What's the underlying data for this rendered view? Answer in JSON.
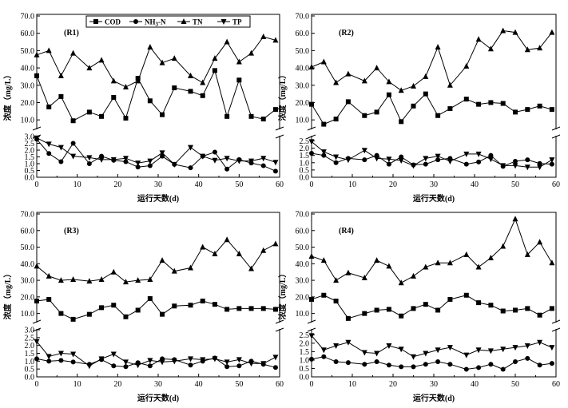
{
  "chart_data": {
    "type": "line",
    "legend": {
      "placement": "top-left of first panel",
      "entries": [
        {
          "key": "COD",
          "label": "COD",
          "marker": "square"
        },
        {
          "key": "NH3N",
          "label_main": "NH",
          "label_sub": "3",
          "label_tail": "-N",
          "marker": "circle"
        },
        {
          "key": "TN",
          "label": "TN",
          "marker": "triangle-up"
        },
        {
          "key": "TP",
          "label": "TP",
          "marker": "triangle-down"
        }
      ]
    },
    "x_axis": {
      "label": "运行天数(d)",
      "range": [
        0,
        60
      ],
      "ticks": [
        0,
        10,
        20,
        30,
        40,
        50,
        60
      ]
    },
    "y_axis": {
      "label": "浓度（mg/L）",
      "broken": true,
      "upper_range": [
        5,
        70
      ],
      "upper_ticks": [
        "10.0",
        "20.0",
        "30.0",
        "40.0",
        "50.0",
        "60.0",
        "70.0"
      ],
      "lower_range": [
        0,
        3
      ],
      "lower_ticks_left": [
        "0.0",
        "0.5",
        "1.0",
        "1.5",
        "2.0",
        "2.5",
        "3.0"
      ],
      "lower_ticks_right": [
        "0.0",
        "0.5",
        "1.0",
        "1.5",
        "2.0",
        "2.5"
      ]
    },
    "x": [
      0,
      3,
      6,
      9,
      13,
      16,
      19,
      22,
      25,
      28,
      31,
      34,
      38,
      41,
      44,
      47,
      50,
      53,
      56,
      59
    ],
    "panels": [
      {
        "tag": "(R1)",
        "lower_max": 3,
        "series": {
          "COD": [
            35.5,
            17.5,
            23.5,
            9.5,
            14.5,
            12,
            23,
            11,
            34,
            21,
            13,
            28.5,
            26.5,
            24,
            38.5,
            12,
            33,
            12,
            10.5,
            16
          ],
          "NH3N": [
            2.8,
            1.75,
            1.15,
            2.5,
            1.0,
            1.55,
            1.25,
            1.15,
            0.75,
            0.85,
            1.55,
            0.95,
            0.7,
            1.55,
            1.85,
            0.6,
            1.3,
            1.05,
            0.85,
            0.45
          ],
          "TN": [
            47.5,
            50,
            35.5,
            48.5,
            40,
            44.5,
            32.5,
            29,
            32.5,
            52,
            43,
            45.5,
            35.5,
            31.5,
            45.5,
            55,
            43.5,
            48.5,
            58,
            56
          ],
          "TP": [
            2.9,
            2.45,
            2.2,
            1.55,
            1.45,
            1.3,
            1.3,
            1.4,
            1.05,
            1.2,
            1.8,
            0.95,
            2.2,
            1.55,
            1.25,
            1.4,
            1.2,
            1.2,
            1.4,
            1.1
          ]
        }
      },
      {
        "tag": "(R2)",
        "lower_max": 2.8,
        "series": {
          "COD": [
            19,
            7.5,
            10.5,
            20.5,
            12.5,
            14.5,
            24.5,
            9,
            18,
            25,
            12.5,
            16.5,
            22,
            19,
            20,
            19.5,
            14.5,
            16,
            18,
            16
          ],
          "NH3N": [
            1.65,
            1.5,
            1.0,
            1.3,
            1.2,
            1.5,
            0.9,
            1.4,
            0.85,
            0.9,
            1.2,
            1.3,
            0.9,
            1.05,
            1.5,
            0.75,
            1.1,
            1.2,
            0.95,
            0.9
          ],
          "TN": [
            40.5,
            43.5,
            31.5,
            36.5,
            32.5,
            40,
            32,
            27,
            29.5,
            35,
            52,
            30,
            41,
            56.5,
            51,
            61.5,
            60.5,
            50.5,
            51.5,
            60.5
          ],
          "TP": [
            2.45,
            1.75,
            1.4,
            1.2,
            1.85,
            1.3,
            1.25,
            1.15,
            0.8,
            1.3,
            1.45,
            1.1,
            1.6,
            1.6,
            1.25,
            0.8,
            0.8,
            0.7,
            0.7,
            1.2
          ]
        }
      },
      {
        "tag": "(R3)",
        "lower_max": 3,
        "series": {
          "COD": [
            17.5,
            18.5,
            10,
            6.5,
            9.5,
            13.5,
            15,
            8,
            12,
            19,
            9.5,
            14.5,
            15,
            17.5,
            15.5,
            12.5,
            13,
            13,
            13,
            12.5
          ],
          "NH3N": [
            1.15,
            1.0,
            1.05,
            0.95,
            0.8,
            1.1,
            0.7,
            0.65,
            0.9,
            0.7,
            1.15,
            1.1,
            0.75,
            1.0,
            1.2,
            0.65,
            0.7,
            1.0,
            0.8,
            0.6
          ],
          "TN": [
            38.5,
            32.5,
            30,
            30.5,
            29.5,
            30.5,
            35,
            29,
            30,
            30.5,
            42,
            35.5,
            37.5,
            50,
            46,
            54.5,
            46,
            37,
            48,
            52
          ],
          "TP": [
            2.25,
            1.3,
            1.5,
            1.45,
            0.7,
            1.15,
            1.45,
            0.95,
            0.75,
            1.05,
            0.95,
            1.0,
            1.15,
            1.1,
            1.15,
            0.95,
            1.1,
            0.85,
            0.85,
            1.25
          ]
        }
      },
      {
        "tag": "(R4)",
        "lower_max": 2.8,
        "series": {
          "COD": [
            18.5,
            21,
            17.5,
            7,
            10,
            12,
            12.5,
            8.5,
            13,
            15.5,
            12,
            18.5,
            21,
            16.5,
            15,
            11.5,
            12,
            13,
            9,
            13
          ],
          "NH3N": [
            1.05,
            1.2,
            0.9,
            0.85,
            0.75,
            0.9,
            0.7,
            0.6,
            0.6,
            0.75,
            0.9,
            0.75,
            0.45,
            0.55,
            0.75,
            0.45,
            0.9,
            1.1,
            0.7,
            0.8
          ],
          "TN": [
            44.5,
            42,
            30,
            34.5,
            31.5,
            42,
            38.5,
            28.5,
            32.5,
            38,
            40.5,
            40.5,
            45.5,
            38,
            43.5,
            50.5,
            67,
            45.5,
            53,
            40.5
          ],
          "TP": [
            2.45,
            1.6,
            1.85,
            2.05,
            1.45,
            1.4,
            1.85,
            1.65,
            1.2,
            1.4,
            1.6,
            1.75,
            1.3,
            1.6,
            1.55,
            1.65,
            1.75,
            1.85,
            2.05,
            1.75
          ]
        }
      }
    ]
  }
}
